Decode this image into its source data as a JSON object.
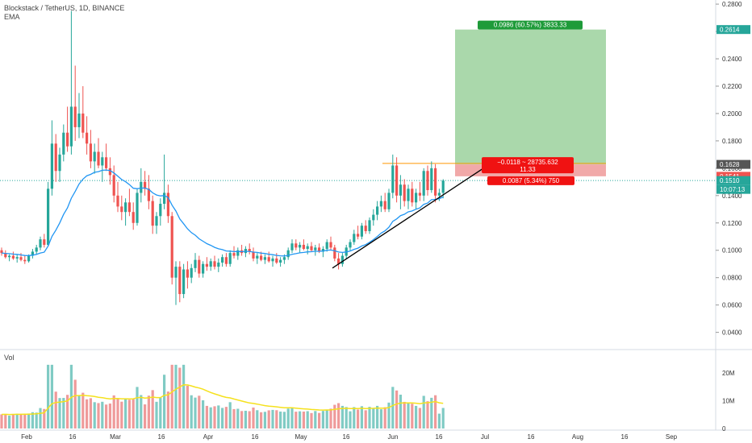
{
  "header": {
    "symbol_line": "Blockstack / TetherUS, 1D, BINANCE",
    "indicator": "EMA"
  },
  "volume_pane": {
    "label": "Vol",
    "y_ticks": [
      "20M",
      "10M",
      "0"
    ]
  },
  "chart_data": {
    "type": "candlestick",
    "title": "Blockstack / TetherUS, 1D, BINANCE",
    "xlabel": "",
    "ylabel": "",
    "x_ticks": [
      "Feb",
      "16",
      "Mar",
      "16",
      "Apr",
      "16",
      "May",
      "16",
      "Jun",
      "16",
      "Jul",
      "16",
      "Aug",
      "16",
      "Sep"
    ],
    "y_ticks": [
      "0.2800",
      "0.2600",
      "0.2400",
      "0.2200",
      "0.2000",
      "0.1800",
      "0.1600",
      "0.1400",
      "0.1200",
      "0.1000",
      "0.0800",
      "0.0600",
      "0.0400"
    ],
    "ylim": [
      0.028,
      0.283
    ],
    "colors": {
      "up": "#26a69a",
      "down": "#ef5350",
      "ema": "#2196f3",
      "volume_ma": "#f5e11d",
      "trendline": "#000000",
      "target_zone": "#a5d6a7",
      "stop_zone": "#ef9a9a",
      "resistance": "#ff9800"
    },
    "price_labels": [
      {
        "text": "0.2614",
        "value": 0.2614,
        "color": "#26a69a"
      },
      {
        "text": "0.1628",
        "value": 0.1628,
        "color": "#555555"
      },
      {
        "text": "0.1541",
        "value": 0.1541,
        "color": "#ef5350"
      },
      {
        "text": "0.1510",
        "value": 0.151,
        "color": "#26a69a"
      },
      {
        "text": "10:07:13",
        "value": 0.151,
        "color": "#26a69a"
      }
    ],
    "position": {
      "entry": 0.1628,
      "target": 0.2614,
      "stop": 0.1541,
      "target_label": "0.0986 (60.57%) 3833.33",
      "stop_label": "0.0087 (5.34%) 750",
      "open_pnl_label": "−0.0118 ~ 28735.632",
      "open_pnl_sub": "11.33"
    },
    "annotations": [
      {
        "type": "trendline",
        "from_value": 0.087,
        "to_value": 0.1615
      },
      {
        "type": "resistance",
        "value": 0.1635
      }
    ],
    "series_ema": "EMA",
    "ohlc_points": [
      [
        0.1,
        0.102,
        0.096,
        0.098
      ],
      [
        0.098,
        0.1,
        0.094,
        0.095
      ],
      [
        0.095,
        0.097,
        0.092,
        0.096
      ],
      [
        0.096,
        0.099,
        0.093,
        0.094
      ],
      [
        0.094,
        0.097,
        0.091,
        0.095
      ],
      [
        0.095,
        0.098,
        0.092,
        0.093
      ],
      [
        0.093,
        0.096,
        0.09,
        0.092
      ],
      [
        0.092,
        0.097,
        0.091,
        0.096
      ],
      [
        0.096,
        0.101,
        0.094,
        0.099
      ],
      [
        0.099,
        0.104,
        0.097,
        0.102
      ],
      [
        0.102,
        0.11,
        0.1,
        0.108
      ],
      [
        0.108,
        0.112,
        0.102,
        0.104
      ],
      [
        0.104,
        0.15,
        0.103,
        0.145
      ],
      [
        0.145,
        0.195,
        0.14,
        0.178
      ],
      [
        0.178,
        0.185,
        0.15,
        0.158
      ],
      [
        0.158,
        0.175,
        0.15,
        0.17
      ],
      [
        0.17,
        0.192,
        0.165,
        0.186
      ],
      [
        0.186,
        0.205,
        0.172,
        0.176
      ],
      [
        0.176,
        0.275,
        0.17,
        0.205
      ],
      [
        0.205,
        0.235,
        0.18,
        0.19
      ],
      [
        0.19,
        0.215,
        0.182,
        0.2
      ],
      [
        0.2,
        0.22,
        0.182,
        0.186
      ],
      [
        0.186,
        0.198,
        0.17,
        0.178
      ],
      [
        0.178,
        0.188,
        0.16,
        0.165
      ],
      [
        0.165,
        0.178,
        0.156,
        0.172
      ],
      [
        0.172,
        0.182,
        0.16,
        0.162
      ],
      [
        0.162,
        0.172,
        0.15,
        0.168
      ],
      [
        0.168,
        0.178,
        0.158,
        0.16
      ],
      [
        0.16,
        0.168,
        0.148,
        0.155
      ],
      [
        0.155,
        0.162,
        0.135,
        0.14
      ],
      [
        0.14,
        0.15,
        0.128,
        0.132
      ],
      [
        0.132,
        0.14,
        0.122,
        0.128
      ],
      [
        0.128,
        0.138,
        0.118,
        0.135
      ],
      [
        0.135,
        0.145,
        0.125,
        0.128
      ],
      [
        0.128,
        0.135,
        0.115,
        0.12
      ],
      [
        0.12,
        0.145,
        0.118,
        0.142
      ],
      [
        0.142,
        0.16,
        0.135,
        0.15
      ],
      [
        0.15,
        0.158,
        0.14,
        0.145
      ],
      [
        0.145,
        0.155,
        0.13,
        0.136
      ],
      [
        0.136,
        0.14,
        0.112,
        0.118
      ],
      [
        0.118,
        0.128,
        0.112,
        0.125
      ],
      [
        0.125,
        0.138,
        0.118,
        0.134
      ],
      [
        0.134,
        0.17,
        0.13,
        0.142
      ],
      [
        0.142,
        0.148,
        0.12,
        0.125
      ],
      [
        0.125,
        0.128,
        0.075,
        0.08
      ],
      [
        0.08,
        0.092,
        0.06,
        0.088
      ],
      [
        0.088,
        0.092,
        0.062,
        0.068
      ],
      [
        0.068,
        0.09,
        0.065,
        0.086
      ],
      [
        0.086,
        0.092,
        0.072,
        0.08
      ],
      [
        0.08,
        0.09,
        0.076,
        0.087
      ],
      [
        0.087,
        0.098,
        0.084,
        0.093
      ],
      [
        0.093,
        0.096,
        0.08,
        0.083
      ],
      [
        0.083,
        0.092,
        0.08,
        0.09
      ],
      [
        0.09,
        0.095,
        0.085,
        0.088
      ],
      [
        0.088,
        0.094,
        0.085,
        0.092
      ],
      [
        0.092,
        0.096,
        0.086,
        0.088
      ],
      [
        0.088,
        0.094,
        0.084,
        0.091
      ],
      [
        0.091,
        0.097,
        0.088,
        0.095
      ],
      [
        0.095,
        0.098,
        0.088,
        0.09
      ],
      [
        0.09,
        0.1,
        0.088,
        0.098
      ],
      [
        0.098,
        0.103,
        0.094,
        0.096
      ],
      [
        0.096,
        0.102,
        0.093,
        0.1
      ],
      [
        0.1,
        0.104,
        0.096,
        0.098
      ],
      [
        0.098,
        0.103,
        0.095,
        0.101
      ],
      [
        0.101,
        0.105,
        0.097,
        0.099
      ],
      [
        0.099,
        0.102,
        0.092,
        0.094
      ],
      [
        0.094,
        0.098,
        0.09,
        0.096
      ],
      [
        0.096,
        0.099,
        0.092,
        0.093
      ],
      [
        0.093,
        0.097,
        0.09,
        0.095
      ],
      [
        0.095,
        0.099,
        0.091,
        0.092
      ],
      [
        0.092,
        0.096,
        0.088,
        0.094
      ],
      [
        0.094,
        0.098,
        0.09,
        0.091
      ],
      [
        0.091,
        0.095,
        0.088,
        0.093
      ],
      [
        0.093,
        0.097,
        0.09,
        0.095
      ],
      [
        0.095,
        0.102,
        0.093,
        0.1
      ],
      [
        0.1,
        0.108,
        0.098,
        0.105
      ],
      [
        0.105,
        0.108,
        0.1,
        0.102
      ],
      [
        0.102,
        0.106,
        0.098,
        0.104
      ],
      [
        0.104,
        0.108,
        0.1,
        0.101
      ],
      [
        0.101,
        0.105,
        0.097,
        0.103
      ],
      [
        0.103,
        0.106,
        0.099,
        0.1
      ],
      [
        0.1,
        0.104,
        0.096,
        0.102
      ],
      [
        0.102,
        0.105,
        0.098,
        0.099
      ],
      [
        0.099,
        0.103,
        0.095,
        0.101
      ],
      [
        0.101,
        0.108,
        0.099,
        0.106
      ],
      [
        0.106,
        0.11,
        0.1,
        0.102
      ],
      [
        0.102,
        0.104,
        0.092,
        0.094
      ],
      [
        0.094,
        0.098,
        0.086,
        0.09
      ],
      [
        0.09,
        0.098,
        0.088,
        0.096
      ],
      [
        0.096,
        0.104,
        0.094,
        0.102
      ],
      [
        0.102,
        0.108,
        0.1,
        0.106
      ],
      [
        0.106,
        0.115,
        0.104,
        0.112
      ],
      [
        0.112,
        0.118,
        0.108,
        0.11
      ],
      [
        0.11,
        0.12,
        0.108,
        0.118
      ],
      [
        0.118,
        0.122,
        0.112,
        0.114
      ],
      [
        0.114,
        0.124,
        0.112,
        0.122
      ],
      [
        0.122,
        0.13,
        0.118,
        0.126
      ],
      [
        0.126,
        0.136,
        0.122,
        0.132
      ],
      [
        0.132,
        0.14,
        0.128,
        0.136
      ],
      [
        0.136,
        0.142,
        0.128,
        0.13
      ],
      [
        0.13,
        0.145,
        0.128,
        0.142
      ],
      [
        0.142,
        0.17,
        0.138,
        0.162
      ],
      [
        0.162,
        0.168,
        0.135,
        0.14
      ],
      [
        0.14,
        0.155,
        0.13,
        0.148
      ],
      [
        0.148,
        0.152,
        0.132,
        0.136
      ],
      [
        0.136,
        0.148,
        0.13,
        0.145
      ],
      [
        0.145,
        0.15,
        0.132,
        0.135
      ],
      [
        0.135,
        0.145,
        0.13,
        0.142
      ],
      [
        0.142,
        0.15,
        0.136,
        0.14
      ],
      [
        0.14,
        0.16,
        0.136,
        0.158
      ],
      [
        0.158,
        0.162,
        0.14,
        0.144
      ],
      [
        0.144,
        0.165,
        0.142,
        0.16
      ],
      [
        0.16,
        0.163,
        0.135,
        0.14
      ],
      [
        0.14,
        0.145,
        0.136,
        0.142
      ],
      [
        0.142,
        0.152,
        0.138,
        0.151
      ]
    ],
    "volume_scale_max": 25000000
  }
}
